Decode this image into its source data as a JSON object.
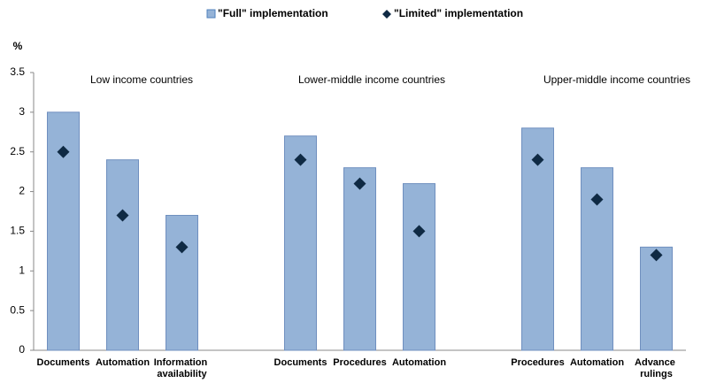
{
  "chart_data": {
    "type": "bar",
    "y_label": "%",
    "categories": [
      "Documents",
      "Automation",
      "Information availability",
      null,
      "Documents",
      "Procedures",
      "Automation",
      null,
      "Procedures",
      "Automation",
      "Advance rulings"
    ],
    "series": [
      {
        "name": "\"Full\" implementation",
        "color": "#95b3d7",
        "values": [
          3.0,
          2.4,
          1.7,
          null,
          2.7,
          2.3,
          2.1,
          null,
          2.8,
          2.3,
          1.3
        ]
      },
      {
        "name": "\"Limited\" implementation",
        "color": "#0f2a44",
        "marker": "diamond",
        "values": [
          2.5,
          1.7,
          1.3,
          null,
          2.4,
          2.1,
          1.5,
          null,
          2.4,
          1.9,
          1.2
        ]
      }
    ],
    "annotations": [
      "Low income countries",
      "Lower-middle income countries",
      "Upper-middle income countries"
    ],
    "ylim": [
      0,
      3.5
    ],
    "yticks": [
      0,
      0.5,
      1,
      1.5,
      2,
      2.5,
      3,
      3.5
    ],
    "grid": false,
    "legend": "top"
  }
}
